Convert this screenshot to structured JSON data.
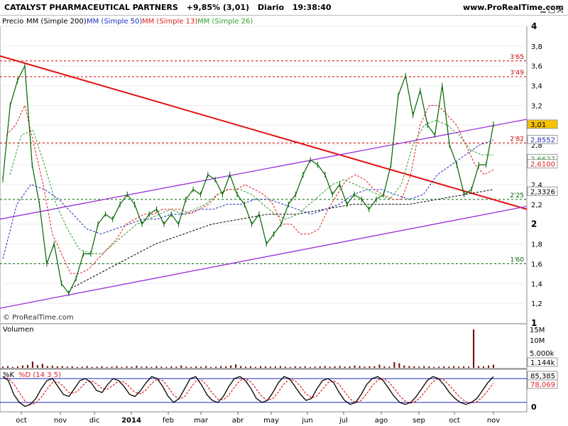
{
  "header": {
    "ticker": "CATALYST PHARMACEUTICAL PARTNERS",
    "change": "+9,85% (3,01)",
    "period": "Diario",
    "time": "19:38:40",
    "site": "www.ProRealTime.com"
  },
  "indicators": {
    "price": "Precio",
    "mm200": "MM (Simple 200)",
    "mm50": "MM (Simple 50)",
    "mm13": "MM (Simple 13)",
    "mm26": "MM (Simple 26)"
  },
  "watermark": "© ProRealTime.com",
  "colors": {
    "price": "#006400",
    "mm200": "#000000",
    "mm50": "#1f2fbf",
    "mm13": "#e02020",
    "mm26": "#2e9e2e",
    "trend_red": "#e41010",
    "channel": "#9b30d9",
    "volume": "#6e0000",
    "k": "#000000",
    "d": "#e02020"
  },
  "chart_data": [
    {
      "type": "line",
      "ylim": [
        1.0,
        4.0
      ],
      "y_ticks": [
        1,
        1.2,
        1.4,
        1.6,
        1.8,
        2,
        2.2,
        2.4,
        2.6,
        2.8,
        3,
        3.2,
        3.4,
        3.6,
        3.8,
        4
      ],
      "y_tick_labels": [
        "1",
        "1,2",
        "1,4",
        "1,6",
        "1,8",
        "2",
        "2,2",
        "2,4",
        "2,6",
        "2,8",
        "3",
        "3,2",
        "3,4",
        "3,6",
        "3,8",
        "4"
      ],
      "x_ticks": [
        "oct",
        "nov",
        "dic",
        "2014",
        "feb",
        "mar",
        "abr",
        "may",
        "jun",
        "jul",
        "ago",
        "sep",
        "oct",
        "nov"
      ],
      "price_series": [
        2.45,
        3.2,
        3.45,
        3.6,
        2.6,
        2.2,
        1.6,
        1.8,
        1.4,
        1.3,
        1.45,
        1.7,
        1.7,
        2.0,
        2.1,
        2.05,
        2.2,
        2.3,
        2.2,
        2.0,
        2.1,
        2.15,
        2.0,
        2.1,
        2.0,
        2.25,
        2.35,
        2.3,
        2.5,
        2.45,
        2.3,
        2.5,
        2.3,
        2.2,
        2.0,
        2.1,
        1.8,
        1.9,
        2.0,
        2.2,
        2.3,
        2.5,
        2.65,
        2.6,
        2.5,
        2.3,
        2.4,
        2.2,
        2.3,
        2.25,
        2.15,
        2.25,
        2.3,
        2.6,
        3.3,
        3.5,
        3.1,
        3.35,
        3.0,
        2.9,
        3.4,
        2.8,
        2.6,
        2.3,
        2.35,
        2.6,
        2.6,
        3.01
      ],
      "mm13_series": [
        2.9,
        3.0,
        3.2,
        2.8,
        2.4,
        1.9,
        1.7,
        1.5,
        1.5,
        1.55,
        1.65,
        1.75,
        1.85,
        2.0,
        2.05,
        2.1,
        2.1,
        2.15,
        2.15,
        2.15,
        2.1,
        2.15,
        2.2,
        2.3,
        2.35,
        2.35,
        2.4,
        2.35,
        2.3,
        2.2,
        2.0,
        2.0,
        1.9,
        1.9,
        1.95,
        2.15,
        2.3,
        2.45,
        2.5,
        2.45,
        2.35,
        2.3,
        2.25,
        2.25,
        2.5,
        3.0,
        3.2,
        3.2,
        3.1,
        3.0,
        2.8,
        2.6,
        2.5,
        2.55
      ],
      "mm26_series": [
        2.5,
        2.9,
        2.95,
        2.6,
        2.2,
        1.95,
        1.75,
        1.7,
        1.7,
        1.8,
        1.9,
        2.0,
        2.05,
        2.1,
        2.15,
        2.1,
        2.15,
        2.2,
        2.3,
        2.35,
        2.35,
        2.3,
        2.2,
        2.1,
        2.05,
        2.1,
        2.2,
        2.3,
        2.4,
        2.45,
        2.4,
        2.35,
        2.3,
        2.25,
        2.4,
        2.8,
        3.0,
        3.05,
        3.0,
        2.9,
        2.75,
        2.7,
        2.7
      ],
      "mm50_series": [
        1.65,
        2.2,
        2.4,
        2.35,
        2.25,
        2.1,
        1.95,
        1.9,
        1.95,
        2.0,
        2.05,
        2.05,
        2.1,
        2.1,
        2.15,
        2.15,
        2.2,
        2.2,
        2.25,
        2.25,
        2.2,
        2.15,
        2.1,
        2.15,
        2.2,
        2.3,
        2.35,
        2.35,
        2.3,
        2.25,
        2.3,
        2.5,
        2.6,
        2.7,
        2.8,
        2.85
      ],
      "mm200_series": [
        1.35,
        1.5,
        1.65,
        1.8,
        1.9,
        2.0,
        2.05,
        2.1,
        2.1,
        2.15,
        2.2,
        2.2,
        2.2,
        2.25,
        2.3,
        2.35
      ],
      "trend_lines": [
        {
          "from": [
            "start",
            3.7
          ],
          "to": [
            "end",
            2.15
          ],
          "color": "trend_red"
        },
        {
          "from": [
            "start",
            2.05
          ],
          "to": [
            "end",
            3.06
          ],
          "color": "channel"
        },
        {
          "from": [
            "start",
            1.15
          ],
          "to": [
            "end",
            2.18
          ],
          "color": "channel"
        }
      ],
      "levels": [
        {
          "value": 3.65,
          "label": "3'65"
        },
        {
          "value": 3.49,
          "label": "3'49"
        },
        {
          "value": 2.82,
          "label": "2'82"
        },
        {
          "value": 2.25,
          "label": "2'25"
        },
        {
          "value": 1.6,
          "label": "1'60"
        }
      ],
      "price_tags": [
        {
          "value": 3.01,
          "label": "3,01",
          "bg": "#f5c400",
          "fg": "#000"
        },
        {
          "value": 2.8552,
          "label": "2,8552",
          "bg": "#fff",
          "fg": "#1f2fbf"
        },
        {
          "value": 2.6627,
          "label": "2,6627",
          "bg": "#fff",
          "fg": "#2e9e2e"
        },
        {
          "value": 2.61,
          "label": "2,6100",
          "bg": "#fff",
          "fg": "#e02020"
        },
        {
          "value": 2.3326,
          "label": "2,3326",
          "bg": "#fff",
          "fg": "#000"
        }
      ]
    },
    {
      "type": "bar",
      "title": "Volumen",
      "y_tick_labels": [
        "15M",
        "10M",
        "5.000k"
      ],
      "last_value_label": "1.144k",
      "values": [
        0.4,
        0.6,
        0.3,
        0.5,
        0.8,
        1.0,
        2.2,
        0.9,
        1.4,
        0.6,
        0.7,
        0.5,
        0.6,
        0.4,
        0.5,
        0.3,
        0.4,
        0.6,
        0.3,
        0.4,
        0.5,
        0.3,
        0.4,
        0.6,
        0.3,
        0.5,
        0.4,
        0.7,
        0.4,
        0.5,
        0.3,
        0.6,
        0.4,
        0.3,
        0.5,
        0.4,
        0.8,
        0.4,
        0.3,
        0.5,
        0.4,
        0.6,
        0.3,
        0.4,
        0.6,
        0.5,
        0.8,
        1.2,
        0.6,
        0.4,
        0.5,
        0.3,
        0.6,
        0.5,
        0.4,
        0.5,
        0.6,
        0.4,
        0.3,
        0.5,
        0.4,
        0.5,
        0.3,
        0.4,
        0.5,
        0.6,
        0.4,
        0.5,
        0.6,
        0.4,
        0.5,
        0.8,
        0.6,
        0.4,
        0.5,
        0.5,
        1.1,
        0.5,
        0.4,
        2.0,
        1.6,
        0.8,
        0.6,
        0.5,
        0.4,
        0.6,
        0.5,
        0.3,
        0.4,
        0.5,
        0.4,
        0.6,
        0.4,
        0.5,
        0.4,
        13.5,
        0.6,
        0.5,
        0.8,
        1.1
      ]
    },
    {
      "type": "line",
      "title": "%K",
      "series_names": [
        "%K",
        "%D (14 3 5)"
      ],
      "ylim": [
        0,
        100
      ],
      "y_tick_labels": [
        "0"
      ],
      "k_value_label": "85,385",
      "d_value_label": "78,069",
      "k_values": [
        85,
        75,
        40,
        20,
        10,
        15,
        30,
        55,
        75,
        80,
        60,
        40,
        35,
        55,
        75,
        80,
        70,
        50,
        45,
        65,
        80,
        75,
        60,
        40,
        35,
        50,
        70,
        85,
        80,
        60,
        35,
        20,
        30,
        55,
        80,
        85,
        65,
        40,
        25,
        20,
        35,
        60,
        80,
        85,
        75,
        55,
        30,
        20,
        25,
        45,
        70,
        85,
        80,
        60,
        40,
        25,
        30,
        55,
        75,
        80,
        70,
        45,
        25,
        15,
        20,
        40,
        65,
        80,
        85,
        75,
        55,
        35,
        20,
        15,
        20,
        35,
        55,
        75,
        85,
        80,
        65,
        45,
        30,
        20,
        15,
        20,
        30,
        50,
        70,
        85
      ]
    }
  ]
}
